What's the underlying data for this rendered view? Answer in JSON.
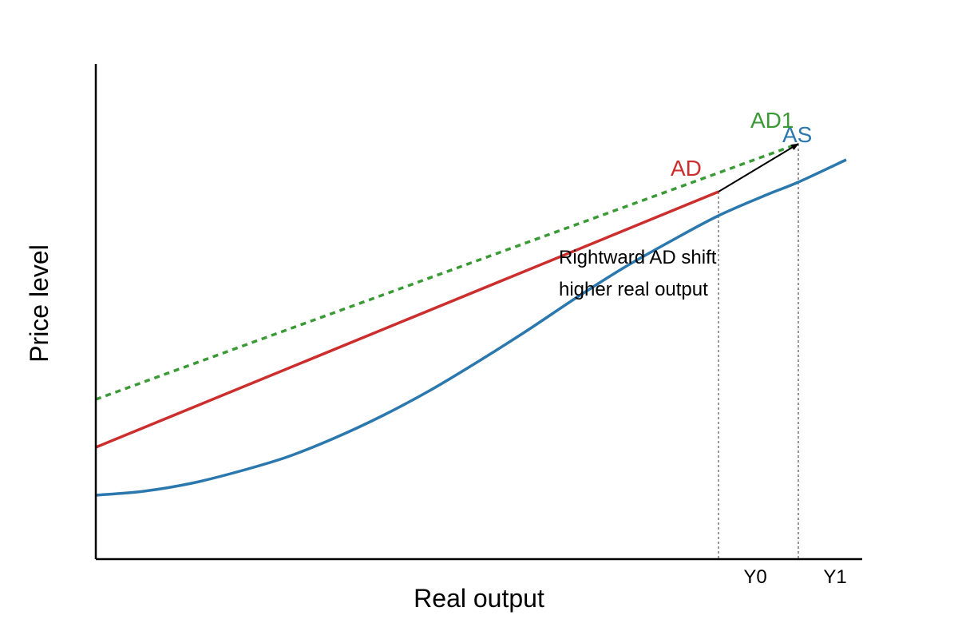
{
  "chart_data": {
    "type": "line",
    "xlabel": "Real output",
    "ylabel": "Price level",
    "xlim": [
      0,
      960
    ],
    "ylim": [
      0,
      620
    ],
    "grid": false,
    "legend": "none",
    "x_ticks": [
      {
        "label": "Y0",
        "value": 780
      },
      {
        "label": "Y1",
        "value": 880
      }
    ],
    "series": [
      {
        "name": "AS",
        "color": "#2a78ae",
        "style": "solid",
        "points": [
          {
            "x": 0,
            "y": 80
          },
          {
            "x": 60,
            "y": 85
          },
          {
            "x": 120,
            "y": 95
          },
          {
            "x": 180,
            "y": 110
          },
          {
            "x": 240,
            "y": 128
          },
          {
            "x": 300,
            "y": 152
          },
          {
            "x": 360,
            "y": 180
          },
          {
            "x": 420,
            "y": 212
          },
          {
            "x": 480,
            "y": 248
          },
          {
            "x": 540,
            "y": 286
          },
          {
            "x": 600,
            "y": 326
          },
          {
            "x": 660,
            "y": 364
          },
          {
            "x": 720,
            "y": 398
          },
          {
            "x": 780,
            "y": 430
          },
          {
            "x": 840,
            "y": 456
          },
          {
            "x": 880,
            "y": 472
          },
          {
            "x": 940,
            "y": 500
          }
        ]
      },
      {
        "name": "AD",
        "color": "#cc2e2e",
        "style": "solid",
        "points": [
          {
            "x": 0,
            "y": 140
          },
          {
            "x": 780,
            "y": 460
          }
        ]
      },
      {
        "name": "AD1",
        "color": "#3a9a35",
        "style": "dashed",
        "points": [
          {
            "x": 0,
            "y": 200
          },
          {
            "x": 880,
            "y": 520
          }
        ]
      }
    ],
    "arrow": {
      "from": {
        "x": 780,
        "y": 460
      },
      "to": {
        "x": 880,
        "y": 520
      }
    },
    "guides": [
      {
        "x": 780,
        "y": 460
      },
      {
        "x": 880,
        "y": 520
      }
    ],
    "annotation_lines": [
      "Rightward AD shift",
      "higher real output"
    ]
  }
}
